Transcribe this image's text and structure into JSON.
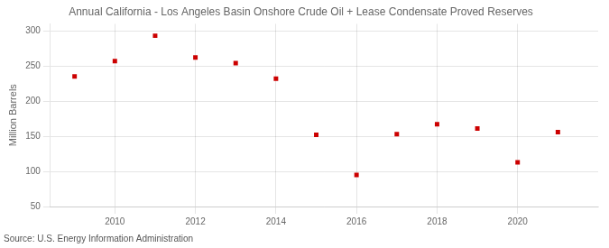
{
  "chart_data": {
    "type": "scatter",
    "title": "Annual California - Los Angeles Basin Onshore Crude Oil + Lease Condensate Proved Reserves",
    "ylabel": "Million Barrels",
    "annotations": [
      "Source: U.S. Energy Information Administration"
    ],
    "x": [
      2009,
      2010,
      2011,
      2012,
      2013,
      2014,
      2015,
      2016,
      2017,
      2018,
      2019,
      2020,
      2021
    ],
    "values": [
      235,
      257,
      293,
      262,
      254,
      232,
      152,
      95,
      153,
      167,
      161,
      113,
      156
    ],
    "color": "#cc0000",
    "marker": "square",
    "xlim": [
      2008.4,
      2022.0
    ],
    "ylim": [
      50,
      310
    ],
    "xticks": [
      2010,
      2012,
      2014,
      2016,
      2018,
      2020
    ],
    "yticks": [
      50,
      100,
      150,
      200,
      250,
      300
    ],
    "grid": true
  }
}
